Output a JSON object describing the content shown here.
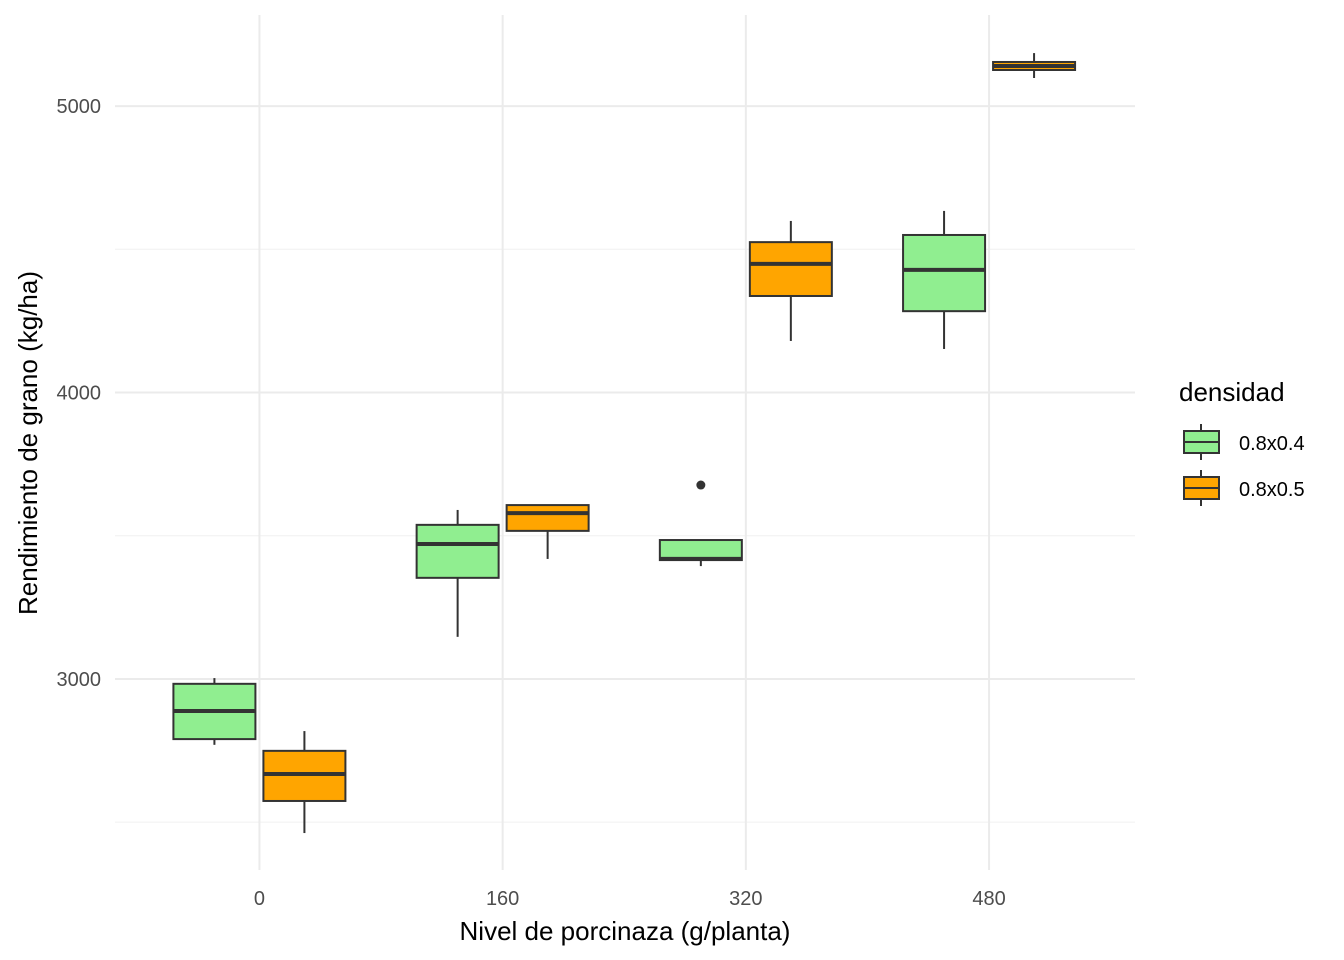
{
  "chart_data": {
    "type": "boxplot",
    "xlabel": "Nivel de porcinaza (g/planta)",
    "ylabel": "Rendimiento de grano (kg/ha)",
    "categories": [
      "0",
      "160",
      "320",
      "480"
    ],
    "x_values": [
      0,
      160,
      320,
      480
    ],
    "xlim": [
      -95,
      576
    ],
    "ylim": [
      2333,
      5318
    ],
    "y_ticks": [
      3000,
      4000,
      5000
    ],
    "y_tick_labels": [
      "3000",
      "4000",
      "5000"
    ],
    "y_minor_ticks": [
      2500,
      3500,
      4500
    ],
    "grid": true,
    "legend": {
      "title": "densidad",
      "position": "right",
      "entries": [
        {
          "label": "0.8x0.4",
          "color": "#90EE90"
        },
        {
          "label": "0.8x0.5",
          "color": "#FFA500"
        }
      ]
    },
    "series": [
      {
        "name": "0.8x0.4",
        "color": "#90EE90",
        "boxes": [
          {
            "x": 0,
            "whisker_low": 2770,
            "q1": 2790,
            "median": 2888,
            "q3": 2983,
            "whisker_high": 3003,
            "outliers": []
          },
          {
            "x": 160,
            "whisker_low": 3147,
            "q1": 3353,
            "median": 3471,
            "q3": 3538,
            "whisker_high": 3590,
            "outliers": []
          },
          {
            "x": 320,
            "whisker_low": 3394,
            "q1": 3415,
            "median": 3419,
            "q3": 3485,
            "whisker_high": 3485,
            "outliers": [
              3677
            ]
          },
          {
            "x": 480,
            "whisker_low": 4152,
            "q1": 4284,
            "median": 4428,
            "q3": 4550,
            "whisker_high": 4634,
            "outliers": []
          }
        ]
      },
      {
        "name": "0.8x0.5",
        "color": "#FFA500",
        "boxes": [
          {
            "x": 0,
            "whisker_low": 2462,
            "q1": 2574,
            "median": 2668,
            "q3": 2749,
            "whisker_high": 2818,
            "outliers": []
          },
          {
            "x": 160,
            "whisker_low": 3419,
            "q1": 3517,
            "median": 3579,
            "q3": 3607,
            "whisker_high": 3607,
            "outliers": []
          },
          {
            "x": 320,
            "whisker_low": 4180,
            "q1": 4337,
            "median": 4449,
            "q3": 4525,
            "whisker_high": 4599,
            "outliers": []
          },
          {
            "x": 480,
            "whisker_low": 5098,
            "q1": 5126,
            "median": 5140,
            "q3": 5154,
            "whisker_high": 5185,
            "outliers": []
          }
        ]
      }
    ]
  }
}
